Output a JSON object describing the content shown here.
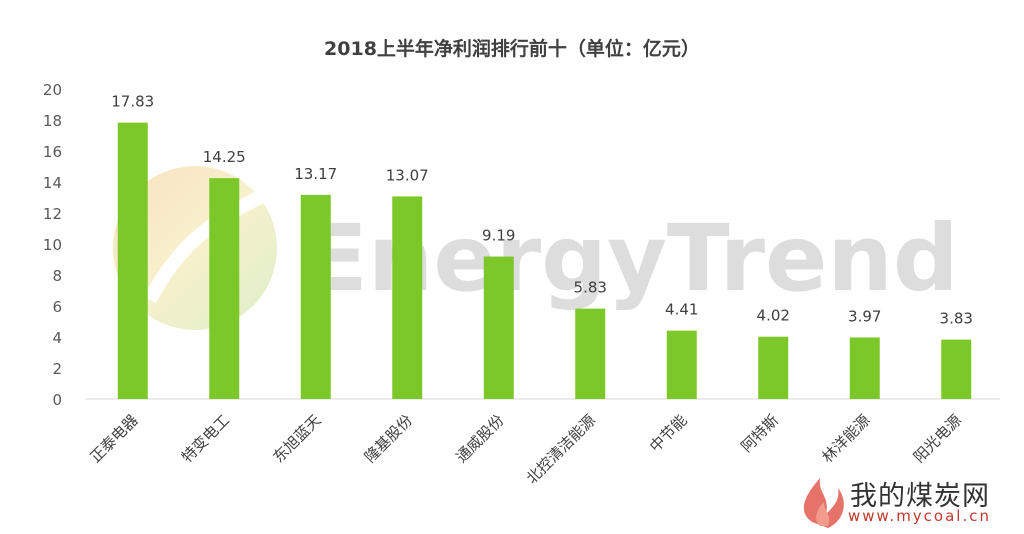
{
  "chart_data": {
    "type": "bar",
    "title": "2018上半年净利润排行前十（单位：亿元）",
    "categories": [
      "正泰电器",
      "特变电工",
      "东旭蓝天",
      "隆基股份",
      "通威股份",
      "北控清洁能源",
      "中节能",
      "阿特斯",
      "林洋能源",
      "阳光电源"
    ],
    "values": [
      17.83,
      14.25,
      13.17,
      13.07,
      9.19,
      5.83,
      4.41,
      4.02,
      3.97,
      3.83
    ],
    "value_labels": [
      "17.83",
      "14.25",
      "13.17",
      "13.07",
      "9.19",
      "5.83",
      "4.41",
      "4.02",
      "3.97",
      "3.83"
    ],
    "yticks": [
      "0",
      "2",
      "4",
      "6",
      "8",
      "10",
      "12",
      "14",
      "16",
      "18",
      "20"
    ],
    "ylim": [
      0,
      20
    ],
    "xlabel": "",
    "ylabel": "",
    "grid": false,
    "bar_color": "#7cc82a"
  },
  "watermark": {
    "text": "EnergyTrend",
    "color": "#cfcfcf"
  },
  "source": {
    "name": "我的煤炭网",
    "url": "www.mycoal.cn",
    "icon": "flame-logo-icon"
  }
}
